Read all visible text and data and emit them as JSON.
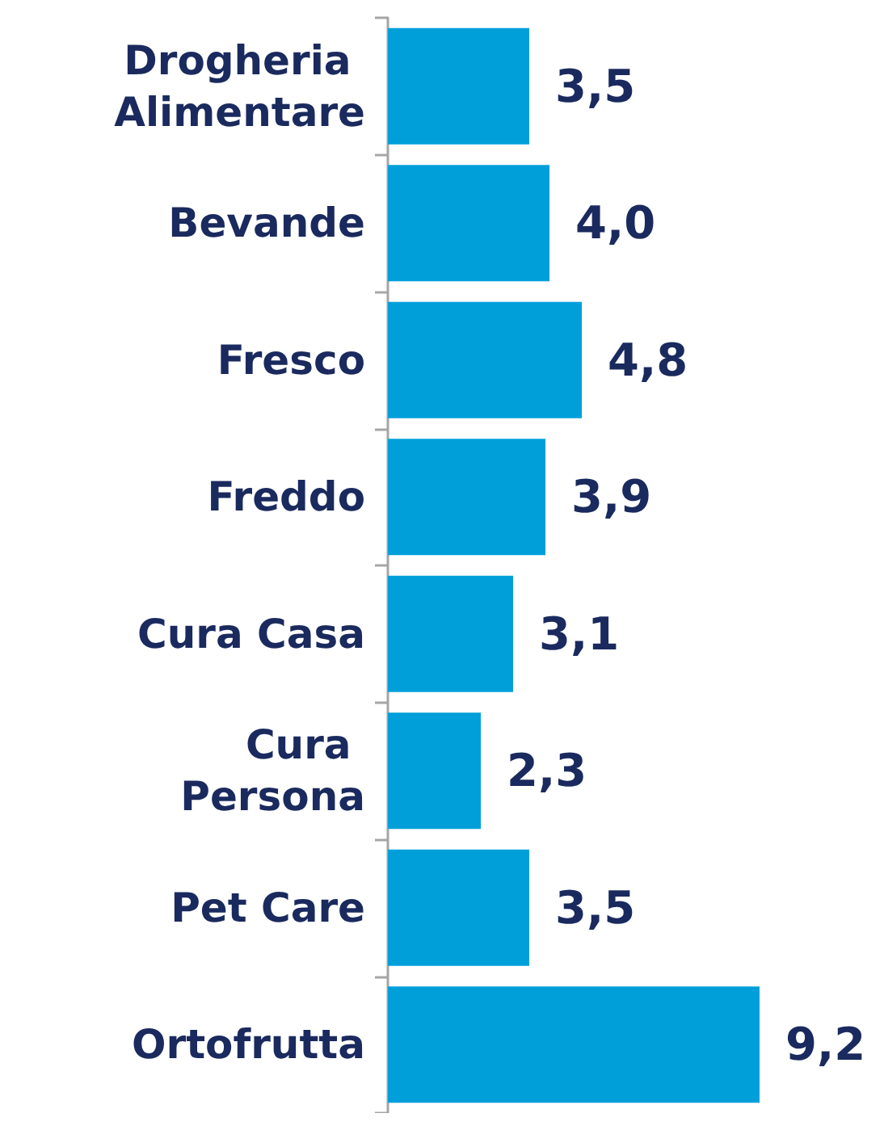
{
  "chart_data": {
    "type": "bar",
    "orientation": "horizontal",
    "categories": [
      "Drogheria Alimentare",
      "Bevande",
      "Fresco",
      "Freddo",
      "Cura Casa",
      "Cura Persona",
      "Pet Care",
      "Ortofrutta"
    ],
    "values": [
      3.5,
      4.0,
      4.8,
      3.9,
      3.1,
      2.3,
      3.5,
      9.2
    ],
    "value_labels": [
      "3,5",
      "4,0",
      "4,8",
      "3,9",
      "3,1",
      "2,3",
      "3,5",
      "9,2"
    ],
    "color": "#009fda",
    "tick_labels": "y"
  }
}
